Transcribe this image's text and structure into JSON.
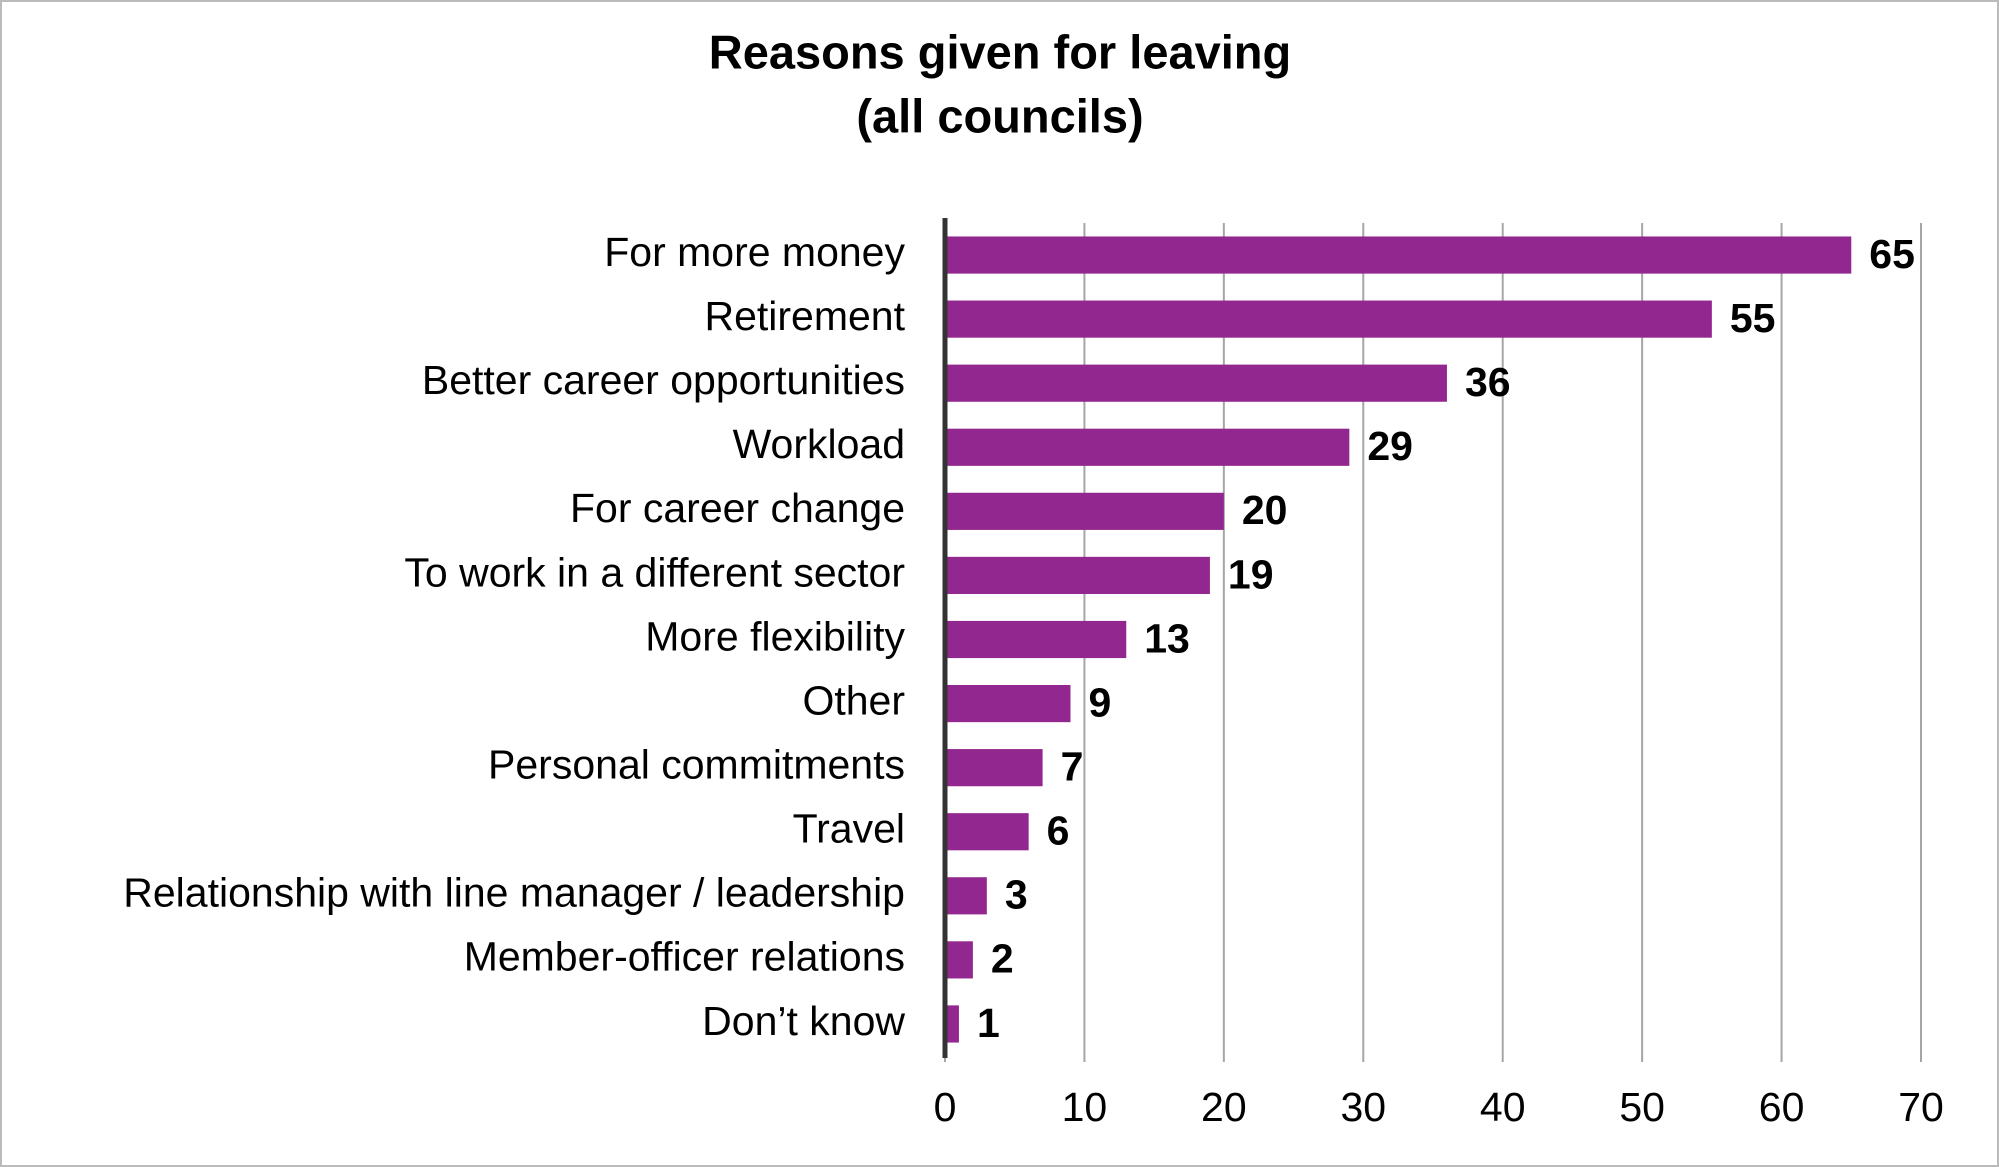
{
  "chart_data": {
    "type": "hbar",
    "title": "Reasons given for leaving",
    "subtitle": "(all councils)",
    "categories": [
      "For more money",
      "Retirement",
      "Better career opportunities",
      "Workload",
      "For career change",
      "To work in a different sector",
      "More flexibility",
      "Other",
      "Personal commitments",
      "Travel",
      "Relationship with line manager / leadership",
      "Member-officer relations",
      "Don’t know"
    ],
    "values": [
      65,
      55,
      36,
      29,
      20,
      19,
      13,
      9,
      7,
      6,
      3,
      2,
      1
    ],
    "color": "#92278f",
    "xlim": [
      0,
      70
    ],
    "xticks": [
      0,
      10,
      20,
      30,
      40,
      50,
      60,
      70
    ],
    "grid": true
  }
}
